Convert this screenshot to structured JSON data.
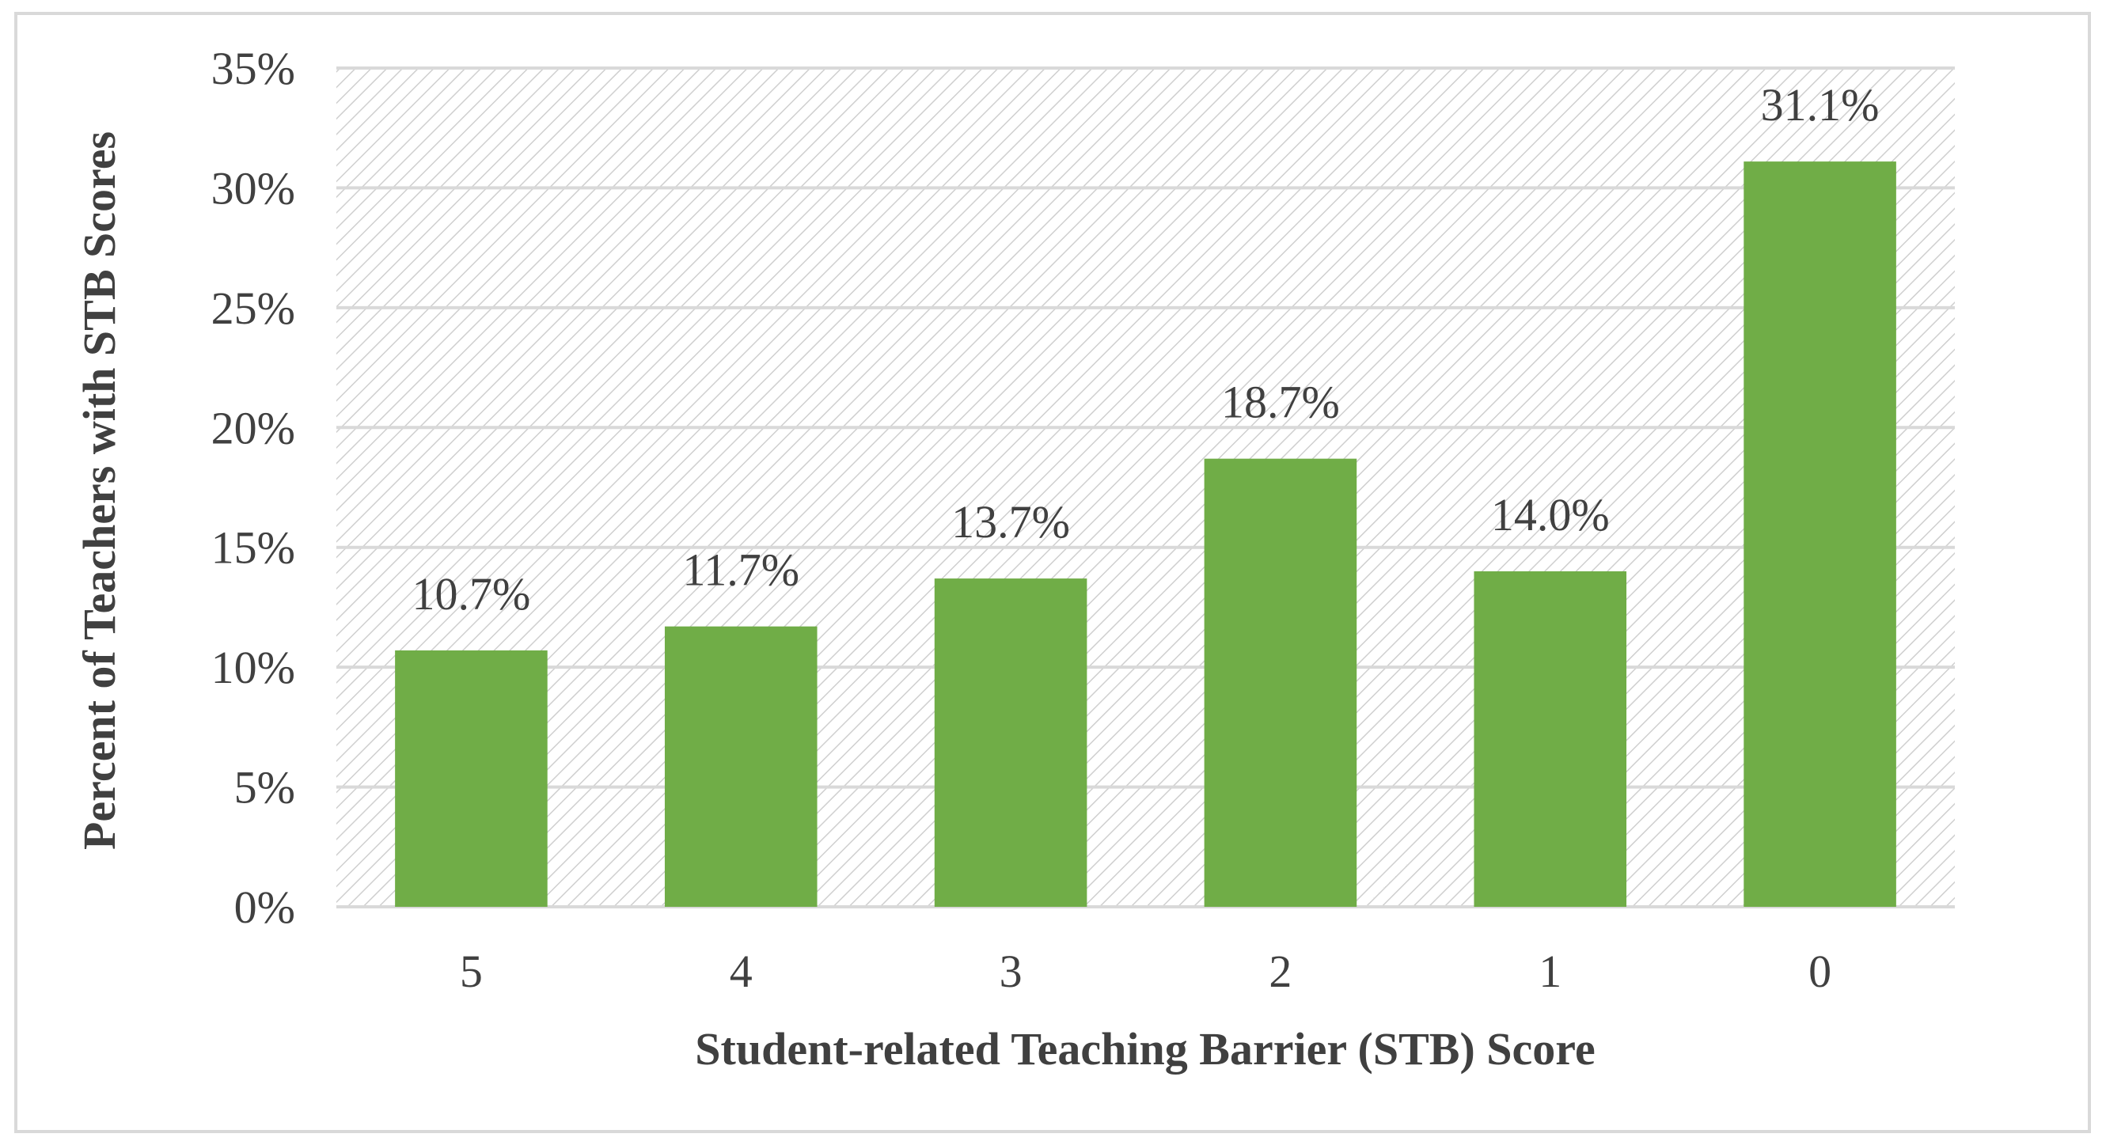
{
  "chart_data": {
    "type": "bar",
    "title": "",
    "xlabel": "Student-related Teaching Barrier (STB) Score",
    "ylabel": "Percent of Teachers with STB Scores",
    "categories": [
      "5",
      "4",
      "3",
      "2",
      "1",
      "0"
    ],
    "values": [
      10.7,
      11.7,
      13.7,
      18.7,
      14.0,
      31.1
    ],
    "data_labels": [
      "10.7%",
      "11.7%",
      "13.7%",
      "18.7%",
      "14.0%",
      "31.1%"
    ],
    "ylim": [
      0,
      35
    ],
    "y_ticks": [
      0,
      5,
      10,
      15,
      20,
      25,
      30,
      35
    ],
    "y_tick_labels": [
      "0%",
      "5%",
      "10%",
      "15%",
      "20%",
      "25%",
      "30%",
      "35%"
    ],
    "grid": true,
    "legend": "none",
    "colors": {
      "bar": "#70AD47",
      "grid": "#D9D9D9",
      "plot_hatch": "#D0D0D0",
      "text": "#404040",
      "frame": "#D9D9D9"
    }
  }
}
